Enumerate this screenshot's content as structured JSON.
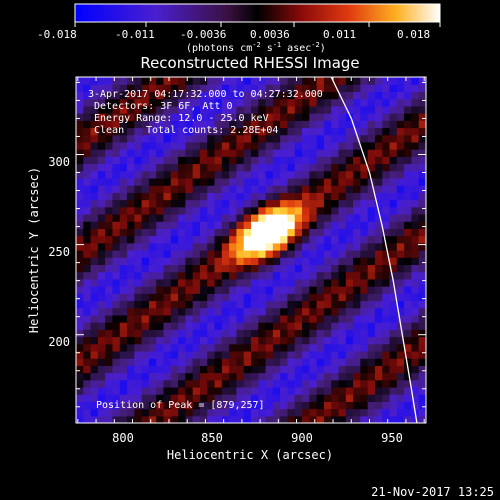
{
  "colorbar": {
    "tick_labels": [
      "-0.018",
      "-0.011",
      "-0.0036",
      "0.0036",
      "0.011",
      "0.018"
    ],
    "tick_values": [
      -0.018,
      -0.011,
      -0.0036,
      0.0036,
      0.011,
      0.018
    ],
    "range": [
      -0.018,
      0.018
    ],
    "units_prefix": "(photons cm",
    "units_exp1": "-2",
    "units_mid1": " s",
    "units_exp2": "-1",
    "units_mid2": " asec",
    "units_exp3": "-2",
    "units_suffix": ")"
  },
  "annotations": {
    "time_range": "3-Apr-2017 04:17:32.000 to 04:27:32.000",
    "detectors": "Detectors: 3F 6F, Att 0",
    "energy": "Energy Range: 12.0 - 25.0 keV",
    "clean": "Clean",
    "counts": "Total counts: 2.28E+04",
    "peak": "Position of Peak = [879,257]"
  },
  "footer_date": "21-Nov-2017 13:25",
  "colors": {
    "limb": "#ffffff",
    "frame": "#ffffff",
    "background": "#000000"
  },
  "chart_data": {
    "type": "heatmap",
    "title": "Reconstructed RHESSI Image",
    "xlabel": "Heliocentric X (arcsec)",
    "ylabel": "Heliocentric Y (arcsec)",
    "xlim": [
      774,
      966
    ],
    "ylim": [
      151,
      343
    ],
    "x_ticks": [
      800,
      850,
      900,
      950
    ],
    "x_tick_labels": [
      "800",
      "850",
      "900",
      "950"
    ],
    "y_ticks": [
      200,
      250,
      300
    ],
    "y_tick_labels": [
      "200",
      "250",
      "300"
    ],
    "peak_position": [
      879,
      257
    ],
    "peak_value": 0.018,
    "colormap": "rhessi (blue-purple-black-red-orange-yellow-white)",
    "solar_limb": [
      [
        914,
        343
      ],
      [
        925,
        320
      ],
      [
        935,
        290
      ],
      [
        942,
        260
      ],
      [
        948,
        230
      ],
      [
        953,
        200
      ],
      [
        958,
        170
      ],
      [
        961,
        151
      ]
    ]
  }
}
